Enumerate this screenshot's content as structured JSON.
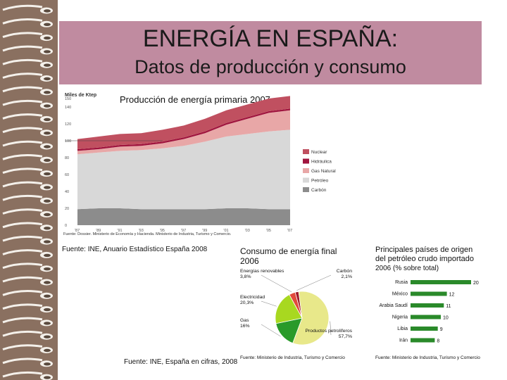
{
  "slide": {
    "title": "ENERGÍA EN ESPAÑA:",
    "subtitle": "Datos de producción y consumo"
  },
  "chart1": {
    "caption": "Producción de energía primaria 2007.",
    "source": "Fuente: Dossier. Ministerio de Economía y Hacienda. Ministerio de Industria, Turismo y Comercio.",
    "footnote": "Fuente: INE, Anuario Estadístico España 2008"
  },
  "chart2": {
    "source_footer": "Fuente: INE, España en cifras, 2008"
  },
  "pie_chart": {
    "title_line1": "Consumo de energía final",
    "title_line2": "2006",
    "source": "Fuente: Ministerio de Industria, Turismo y Comercio"
  },
  "bar_chart": {
    "title_line1": "Principales países de origen",
    "title_line2": "del petróleo crudo importado",
    "title_line3": "2006 (% sobre total)",
    "source": "Fuente: Ministerio de Industria, Turismo y Comercio"
  },
  "chart_data": [
    {
      "type": "area",
      "title": "Producción de energía primaria 2007.",
      "ylabel": "Miles de Ktep",
      "ylim": [
        0,
        150
      ],
      "y_ticks": [
        "150",
        "140",
        "120",
        "100",
        "80",
        "60",
        "40",
        "20",
        "0"
      ],
      "x": [
        "'87",
        "'89",
        "'91",
        "'93",
        "'95",
        "'97",
        "'99",
        "'01",
        "'03",
        "'05",
        "'07"
      ],
      "series": [
        {
          "name": "Carbón",
          "color": "#8c8c8c",
          "values": [
            19,
            20,
            20,
            19,
            19,
            19,
            19,
            20,
            20,
            19,
            19
          ]
        },
        {
          "name": "Petróleo",
          "color": "#d8d8d8",
          "values": [
            65,
            66,
            68,
            70,
            72,
            75,
            80,
            85,
            88,
            92,
            94
          ]
        },
        {
          "name": "Gas Natural",
          "color": "#e8a7a7",
          "values": [
            4,
            4,
            5,
            5,
            6,
            8,
            10,
            14,
            18,
            22,
            23
          ]
        },
        {
          "name": "Hidráulica",
          "color": "#a0153e",
          "values": [
            2,
            2,
            2,
            2,
            2,
            2,
            2,
            2,
            2,
            2,
            2
          ]
        },
        {
          "name": "Nuclear",
          "color": "#c05060",
          "values": [
            12,
            13,
            13,
            13,
            14,
            14,
            15,
            15,
            15,
            15,
            15
          ]
        }
      ]
    },
    {
      "type": "pie",
      "labels": [
        "Energías renovables",
        "Carbón",
        "Productos petrolíferos",
        "Gas",
        "Electricidad"
      ],
      "display_labels": [
        "3,8%",
        "2,1%",
        "57,7%",
        "16%",
        "20,3%"
      ],
      "values": [
        3.8,
        2.1,
        57.7,
        16.0,
        20.3
      ],
      "colors": [
        "#e14a3b",
        "#a01a2a",
        "#e8e88a",
        "#2a9a2a",
        "#a8d820"
      ]
    },
    {
      "type": "bar",
      "categories": [
        "Rusia",
        "México",
        "Arabia Saudí",
        "Nigeria",
        "Libia",
        "Irán"
      ],
      "values": [
        20,
        12,
        11,
        10,
        9,
        8
      ],
      "color": "#2a8a2a"
    }
  ]
}
